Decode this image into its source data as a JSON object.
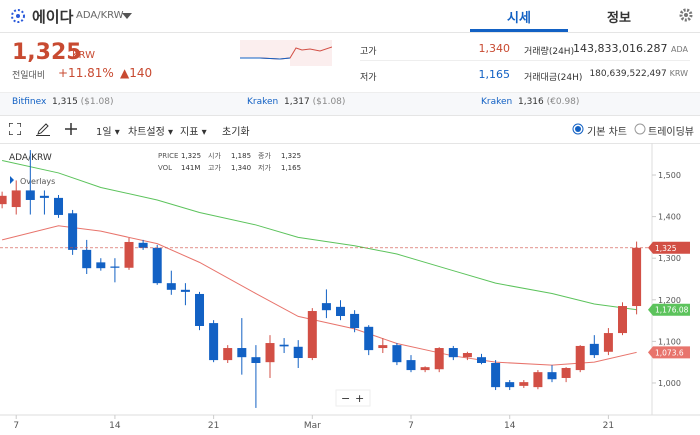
{
  "header": {
    "name": "에이다",
    "pair": "ADA/KRW",
    "tabs": [
      "시세",
      "정보"
    ]
  },
  "price": {
    "current": "1,325",
    "unit": "KRW",
    "change_label": "전일대비",
    "change_pct": "+11.81%",
    "change_abs": "▲140"
  },
  "stats": [
    {
      "label": "고가",
      "value": "1,340"
    },
    {
      "label": "저가",
      "value": "1,165"
    },
    {
      "label": "거래량(24H)",
      "value": "143,833,016.287",
      "unit": "ADA"
    },
    {
      "label": "거래대금(24H)",
      "value": "180,639,522,497",
      "unit": "KRW"
    }
  ],
  "exchanges": [
    {
      "name": "Bitfinex",
      "price": "1,315",
      "ref": "($1.08)"
    },
    {
      "name": "Kraken",
      "price": "1,317",
      "ref": "($1.08)"
    },
    {
      "name": "Kraken",
      "price": "1,316",
      "ref": "(€0.98)"
    }
  ],
  "toolbar": {
    "interval": "1일",
    "settings": "차트설정",
    "indicators": "지표",
    "reset": "초기화",
    "modes": [
      "기본 차트",
      "트레이딩뷰"
    ]
  },
  "chart_data": {
    "type": "candlestick",
    "title": "ADA/KRW",
    "legend": "Overlays",
    "info": [
      [
        "PRICE",
        "1,325"
      ],
      [
        "시가",
        "1,185"
      ],
      [
        "종가",
        "1,325"
      ],
      [
        "VOL",
        "141M"
      ],
      [
        "고가",
        "1,340"
      ],
      [
        "저가",
        "1,165"
      ]
    ],
    "up_color": "#d24f45",
    "down_color": "#1261c4",
    "open": [
      1430,
      1423,
      1463,
      1450,
      1445,
      1408,
      1320,
      1290,
      1280,
      1277,
      1337,
      1325,
      1240,
      1224,
      1214,
      1144,
      1055,
      1084,
      1062,
      1050,
      1092,
      1087,
      1060,
      1192,
      1183,
      1166,
      1135,
      1084,
      1091,
      1055,
      1031,
      1033,
      1084,
      1062,
      1062,
      1048,
      1002,
      993,
      990,
      1026,
      1012,
      1031,
      1094,
      1075,
      1120,
      1185
    ],
    "high": [
      1460,
      1487,
      1560,
      1463,
      1452,
      1416,
      1344,
      1300,
      1300,
      1349,
      1344,
      1332,
      1270,
      1240,
      1219,
      1151,
      1091,
      1156,
      1091,
      1115,
      1108,
      1103,
      1180,
      1225,
      1199,
      1175,
      1139,
      1108,
      1096,
      1067,
      1040,
      1086,
      1089,
      1075,
      1070,
      1055,
      1007,
      1007,
      1031,
      1043,
      1038,
      1091,
      1115,
      1132,
      1194,
      1340
    ],
    "low": [
      1420,
      1405,
      1405,
      1405,
      1397,
      1308,
      1262,
      1270,
      1242,
      1272,
      1320,
      1236,
      1212,
      1187,
      1127,
      1050,
      1048,
      1020,
      940,
      1012,
      1072,
      1036,
      1055,
      1156,
      1151,
      1122,
      1067,
      1072,
      1043,
      1026,
      1026,
      1026,
      1055,
      1055,
      1045,
      983,
      983,
      988,
      985,
      1002,
      1002,
      1026,
      1060,
      1067,
      1115,
      1165
    ],
    "close": [
      1450,
      1463,
      1440,
      1445,
      1404,
      1320,
      1276,
      1276,
      1277,
      1339,
      1325,
      1240,
      1224,
      1219,
      1137,
      1055,
      1084,
      1062,
      1048,
      1096,
      1088,
      1060,
      1173,
      1175,
      1161,
      1132,
      1079,
      1091,
      1050,
      1031,
      1038,
      1084,
      1062,
      1072,
      1048,
      990,
      990,
      1002,
      1026,
      1009,
      1036,
      1089,
      1067,
      1120,
      1185,
      1325
    ],
    "close_label": "1,325",
    "series": [
      {
        "color": "#5cc35c",
        "x": [
          0,
          4,
          7,
          11,
          14,
          18,
          21,
          25,
          28,
          32,
          35,
          39,
          42,
          45
        ],
        "values": [
          1535,
          1505,
          1470,
          1440,
          1410,
          1380,
          1350,
          1330,
          1310,
          1270,
          1240,
          1215,
          1190,
          1176.08
        ],
        "last_label": "1,176.08"
      },
      {
        "color": "#e8746c",
        "x": [
          0,
          4,
          7,
          11,
          14,
          18,
          21,
          25,
          28,
          32,
          35,
          39,
          42,
          45
        ],
        "values": [
          1344,
          1378,
          1365,
          1335,
          1290,
          1215,
          1160,
          1130,
          1095,
          1065,
          1050,
          1043,
          1050,
          1073.6
        ],
        "last_label": "1,073.6"
      }
    ],
    "xlim": [
      -0.15,
      45.95
    ],
    "ylim": [
      935,
      1577
    ],
    "yticks": [
      {
        "value": 1500,
        "label": "1,500"
      },
      {
        "value": 1400,
        "label": "1,400"
      },
      {
        "value": 1300,
        "label": "1,300"
      },
      {
        "value": 1200,
        "label": "1,200"
      },
      {
        "value": 1100,
        "label": "1,100"
      },
      {
        "value": 1000,
        "label": "1,000"
      }
    ],
    "xticks": [
      {
        "value": 1,
        "label": "7"
      },
      {
        "value": 8,
        "label": "14"
      },
      {
        "value": 15,
        "label": "21"
      },
      {
        "value": 22,
        "label": "Mar"
      },
      {
        "value": 29,
        "label": "7"
      },
      {
        "value": 36,
        "label": "14"
      },
      {
        "value": 43,
        "label": "21"
      }
    ]
  }
}
